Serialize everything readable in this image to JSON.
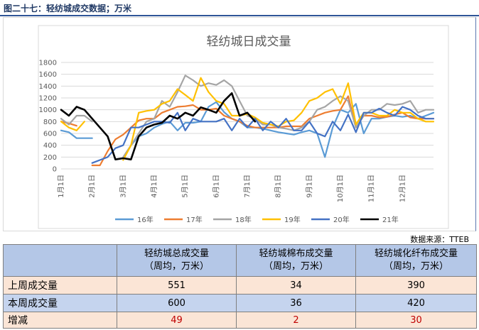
{
  "header": {
    "title": "图二十七：轻纺城成交数据；万米"
  },
  "source": "数据来源：TTEB",
  "chart_data": {
    "type": "line",
    "title": "轻纺城日成交量",
    "x": [
      "1月1日",
      "",
      "",
      "",
      "2月1日",
      "",
      "",
      "",
      "3月1日",
      "",
      "",
      "",
      "4月1日",
      "",
      "",
      "",
      "5月1日",
      "",
      "",
      "",
      "6月1日",
      "",
      "",
      "",
      "7月1日",
      "",
      "",
      "",
      "8月1日",
      "",
      "",
      "",
      "9月1日",
      "",
      "",
      "",
      "10月1日",
      "",
      "",
      "",
      "11月1日",
      "",
      "",
      "",
      "12月1日",
      "",
      "",
      "",
      ""
    ],
    "xticks": [
      "1月1日",
      "2月1日",
      "3月1日",
      "4月1日",
      "5月1日",
      "6月1日",
      "7月1日",
      "8月1日",
      "9月1日",
      "10月1日",
      "11月1日",
      "12月1日"
    ],
    "ylim": [
      0,
      1800
    ],
    "yticks": [
      0,
      200,
      400,
      600,
      800,
      1000,
      1200,
      1400,
      1600,
      1800
    ],
    "grid": true,
    "legend": "bottom",
    "series": [
      {
        "name": "16年",
        "color": "#5b9bd5",
        "values": [
          650,
          620,
          520,
          520,
          520,
          null,
          null,
          null,
          null,
          400,
          550,
          600,
          700,
          760,
          800,
          650,
          780,
          780,
          800,
          1050,
          1130,
          960,
          850,
          800,
          700,
          700,
          680,
          650,
          620,
          600,
          580,
          620,
          650,
          600,
          200,
          700,
          1000,
          950,
          1100,
          600,
          850,
          850,
          880,
          900,
          880,
          900,
          850,
          900,
          950
        ]
      },
      {
        "name": "17年",
        "color": "#ed7d31",
        "values": [
          800,
          770,
          730,
          null,
          60,
          60,
          300,
          500,
          580,
          700,
          820,
          850,
          850,
          950,
          1000,
          1050,
          1060,
          1080,
          1000,
          1000,
          1020,
          900,
          850,
          800,
          730,
          700,
          700,
          700,
          700,
          720,
          720,
          720,
          850,
          900,
          950,
          980,
          1000,
          1230,
          700,
          900,
          900,
          870,
          880,
          920,
          950,
          870,
          850,
          850,
          850
        ]
      },
      {
        "name": "18年",
        "color": "#a5a5a5",
        "values": [
          850,
          750,
          900,
          900,
          800,
          null,
          null,
          null,
          200,
          400,
          600,
          800,
          850,
          1150,
          1050,
          1300,
          1580,
          1500,
          1400,
          1450,
          1420,
          1500,
          1400,
          1150,
          900,
          850,
          750,
          750,
          700,
          680,
          650,
          700,
          800,
          1000,
          1050,
          1150,
          1230,
          1150,
          700,
          900,
          1000,
          1000,
          1100,
          1080,
          1100,
          1150,
          950,
          1000,
          1000
        ]
      },
      {
        "name": "19年",
        "color": "#ffc000",
        "values": [
          800,
          700,
          650,
          800,
          null,
          null,
          null,
          null,
          150,
          400,
          950,
          980,
          1000,
          1100,
          1150,
          1350,
          1250,
          1150,
          1540,
          1300,
          1150,
          1100,
          900,
          900,
          930,
          870,
          780,
          750,
          720,
          800,
          820,
          950,
          1150,
          1200,
          1300,
          1350,
          1100,
          1450,
          750,
          950,
          950,
          900,
          900,
          1000,
          950,
          950,
          850,
          800,
          800
        ]
      },
      {
        "name": "20年",
        "color": "#4472c4",
        "values": [
          null,
          null,
          null,
          null,
          100,
          150,
          200,
          350,
          400,
          700,
          700,
          750,
          800,
          800,
          780,
          950,
          650,
          850,
          800,
          800,
          800,
          850,
          650,
          850,
          700,
          850,
          650,
          800,
          700,
          850,
          650,
          650,
          800,
          600,
          550,
          800,
          650,
          920,
          620,
          950,
          950,
          1020,
          950,
          900,
          1050,
          1000,
          900,
          850,
          850
        ]
      },
      {
        "name": "21年",
        "color": "#000000",
        "values": [
          1000,
          900,
          1050,
          1000,
          850,
          700,
          550,
          160,
          180,
          160,
          550,
          700,
          750,
          780,
          900,
          850,
          950,
          900,
          1040,
          1000,
          950,
          1150,
          1280,
          900,
          950,
          800,
          null,
          null,
          null,
          null,
          null,
          null,
          null,
          null,
          null,
          null,
          null,
          null,
          null,
          null,
          null,
          null,
          null,
          null,
          null,
          null,
          null,
          null,
          null
        ]
      }
    ]
  },
  "table": {
    "headers": [
      [
        "",
        ""
      ],
      [
        "轻纺城总成交量",
        "（周均，万米）"
      ],
      [
        "轻纺城棉布成交量",
        "（周均，万米）"
      ],
      [
        "轻纺城化纤布成交量",
        "（周均，万米）"
      ]
    ],
    "rows": [
      {
        "label": "上周成交量",
        "values": [
          "551",
          "34",
          "390"
        ]
      },
      {
        "label": "本周成交量",
        "values": [
          "600",
          "36",
          "420"
        ]
      },
      {
        "label": "增减",
        "values": [
          "49",
          "2",
          "30"
        ]
      }
    ]
  }
}
